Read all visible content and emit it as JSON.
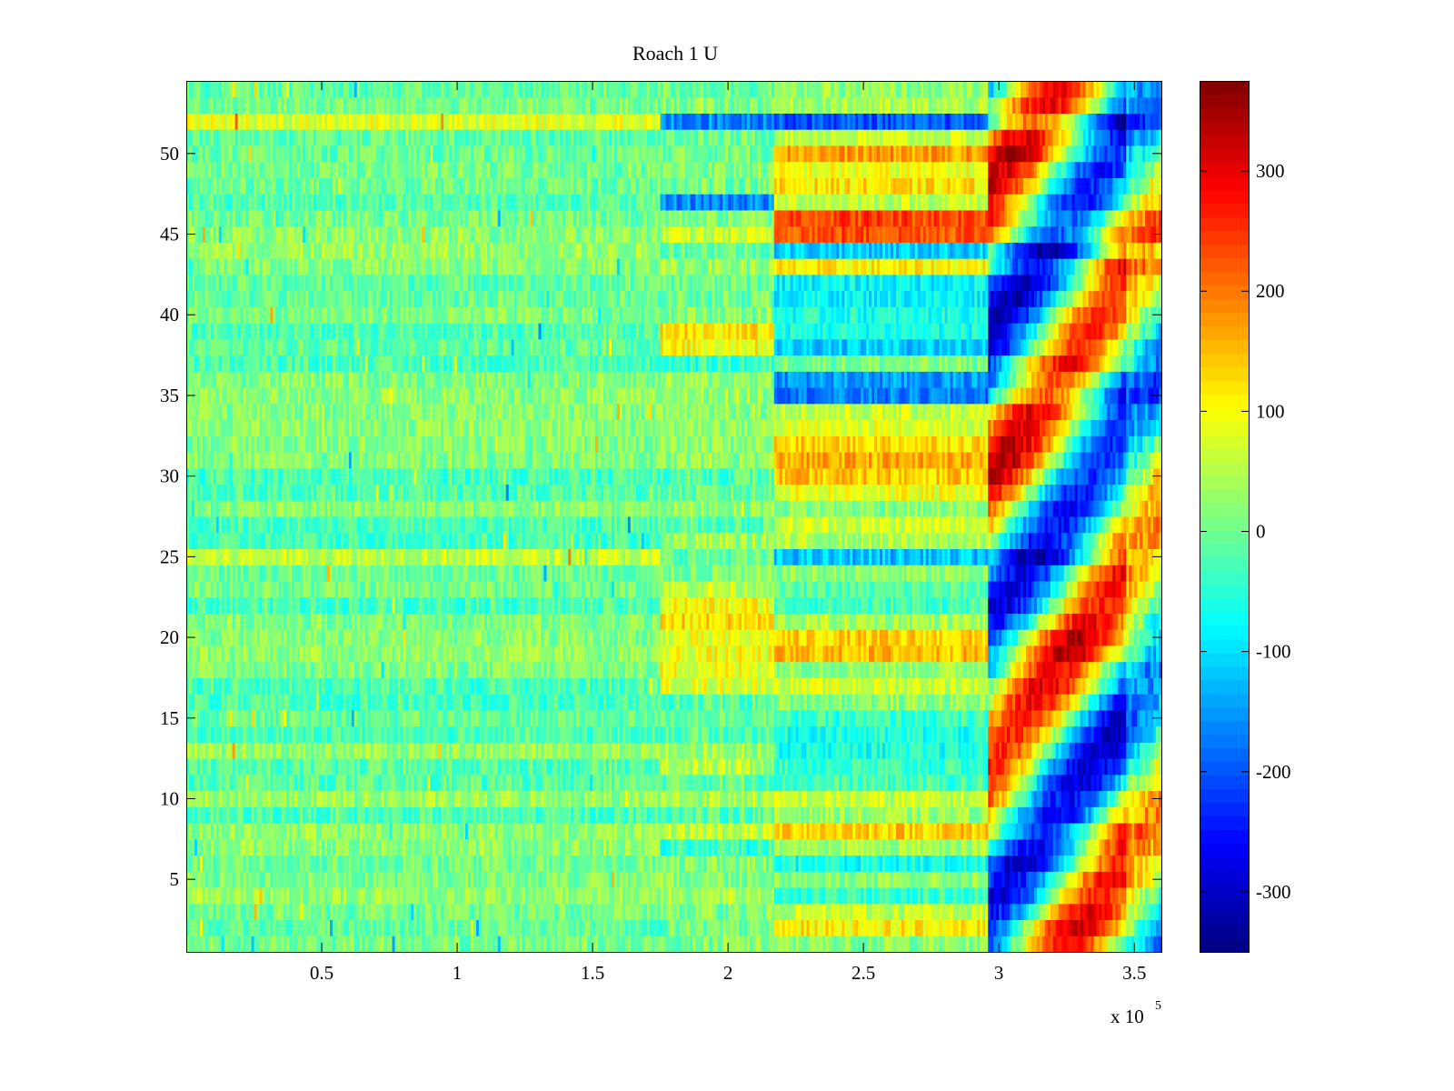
{
  "chart_data": {
    "type": "heatmap",
    "title": "Roach 1 U",
    "xlabel": "",
    "ylabel": "",
    "x_exponent_label": "x 10",
    "x_exponent_power": "5",
    "xlim": [
      0,
      3.6
    ],
    "ylim": [
      0.5,
      54.5
    ],
    "x_ticks": [
      0.5,
      1,
      1.5,
      2,
      2.5,
      3,
      3.5
    ],
    "x_tick_labels": [
      "0.5",
      "1",
      "1.5",
      "2",
      "2.5",
      "3",
      "3.5"
    ],
    "y_ticks": [
      5,
      10,
      15,
      20,
      25,
      30,
      35,
      40,
      45,
      50
    ],
    "y_tick_labels": [
      "5",
      "10",
      "15",
      "20",
      "25",
      "30",
      "35",
      "40",
      "45",
      "50"
    ],
    "colormap": "jet",
    "clim": [
      -350,
      375
    ],
    "colorbar_ticks": [
      -300,
      -200,
      -100,
      0,
      100,
      200,
      300
    ],
    "colorbar_tick_labels": [
      "-300",
      "-200",
      "-100",
      "0",
      "100",
      "200",
      "300"
    ],
    "rows": 54,
    "phases": [
      {
        "x_start": 0.0,
        "x_end": 1.75,
        "description": "baseline noise around -40 to 60"
      },
      {
        "x_start": 1.75,
        "x_end": 2.17,
        "description": "mixed, some rows yellow or blue"
      },
      {
        "x_start": 2.17,
        "x_end": 2.96,
        "description": "row-dependent bands: orange/yellow and cyan/blue"
      },
      {
        "x_start": 2.96,
        "x_end": 3.47,
        "description": "strong oscillation between about -350 and 375"
      },
      {
        "x_start": 3.47,
        "x_end": 3.6,
        "description": "decaying oscillation"
      }
    ],
    "row_band_levels_phase3": {
      "1": 20,
      "2": 110,
      "3": 60,
      "4": -40,
      "5": 20,
      "6": -60,
      "7": 40,
      "8": 140,
      "9": 30,
      "10": 60,
      "11": -30,
      "12": -40,
      "13": -60,
      "14": -60,
      "15": -40,
      "16": 20,
      "17": 70,
      "18": 30,
      "19": 150,
      "20": 130,
      "21": 40,
      "22": -30,
      "23": -20,
      "24": 20,
      "25": -120,
      "26": 40,
      "27": 70,
      "28": 20,
      "29": 90,
      "30": 140,
      "31": 160,
      "32": 130,
      "33": 80,
      "34": 60,
      "35": -170,
      "36": -150,
      "37": 10,
      "38": -110,
      "39": -60,
      "40": -60,
      "41": -80,
      "42": -80,
      "43": 110,
      "44": -110,
      "45": 230,
      "46": 240,
      "47": 60,
      "48": 120,
      "49": 90,
      "50": 170,
      "51": 60,
      "52": -200,
      "53": 40,
      "54": 20
    },
    "row_levels_phase2": {
      "7": -40,
      "8": 60,
      "12": 50,
      "17": 80,
      "18": 90,
      "19": 90,
      "20": 80,
      "21": 120,
      "22": 100,
      "23": 60,
      "37": -40,
      "38": 100,
      "39": 120,
      "45": 60,
      "47": -160,
      "52": -160
    },
    "row_levels_phase1": {
      "25": 60,
      "26": -30,
      "44": 30,
      "52": 80
    }
  }
}
